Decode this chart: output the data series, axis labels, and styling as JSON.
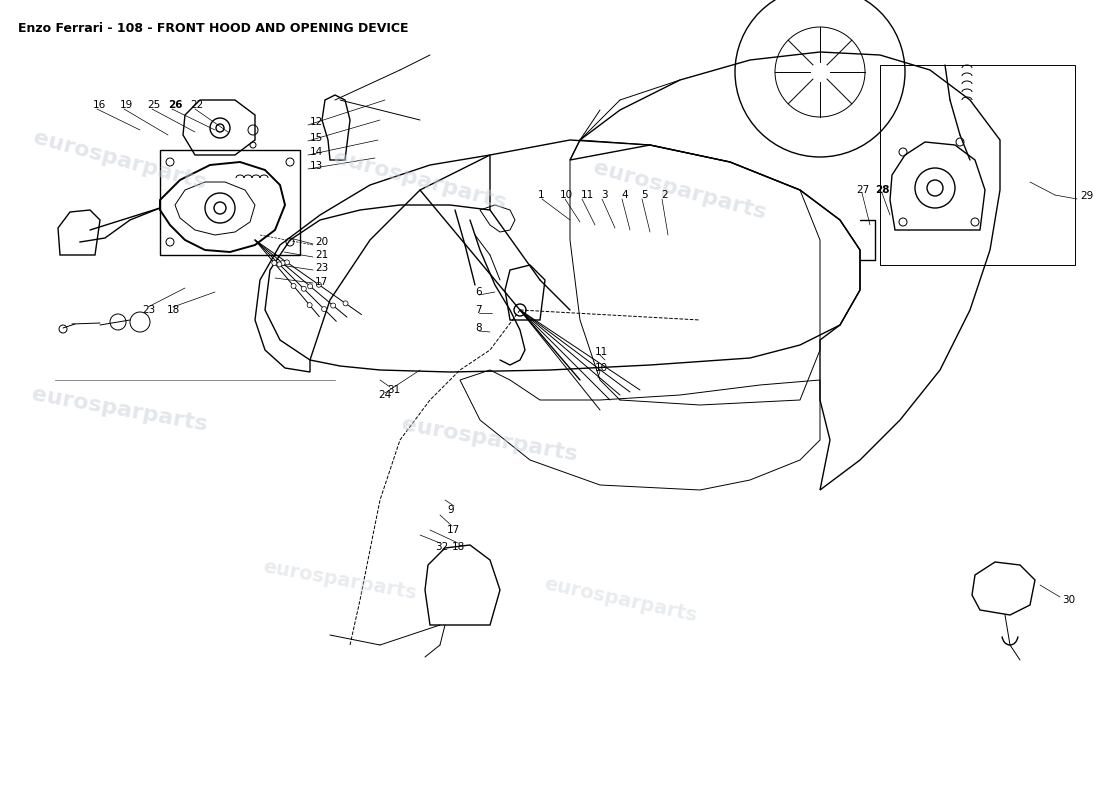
{
  "title": "Enzo Ferrari - 108 - FRONT HOOD AND OPENING DEVICE",
  "title_fontsize": 9,
  "background_color": "#ffffff",
  "line_color": "#000000",
  "watermark_color": "#c8d0d8",
  "watermark_text": "eurosparparts",
  "fig_width": 11.0,
  "fig_height": 8.0,
  "dpi": 100
}
